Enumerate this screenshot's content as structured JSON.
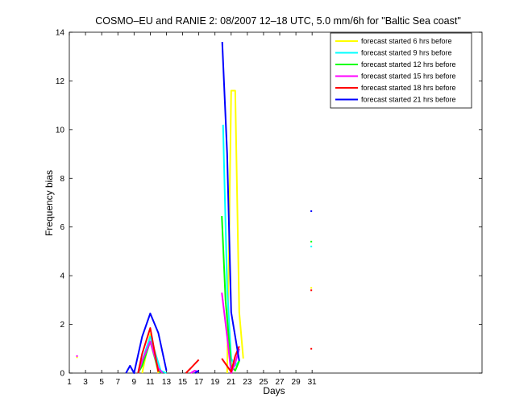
{
  "chart_data": {
    "type": "line",
    "title": "COSMO–EU and RANIE 2: 08/2007 12–18 UTC, 5.0 mm/6h for \"Baltic Sea coast\"",
    "xlabel": "Days",
    "ylabel": "Frequency bias",
    "xlim": [
      1,
      52
    ],
    "ylim": [
      0,
      14
    ],
    "xticks": [
      1,
      3,
      5,
      7,
      9,
      11,
      13,
      15,
      17,
      19,
      21,
      23,
      25,
      27,
      29,
      31
    ],
    "yticks": [
      0,
      2,
      4,
      6,
      8,
      10,
      12,
      14
    ],
    "grid": false,
    "legend_position": "top-right",
    "series": [
      {
        "name": "forecast started 6 hrs before",
        "color": "#ffff00",
        "segments": [
          [
            [
              1.95,
              0.65
            ]
          ],
          [
            [
              10,
              0.0
            ],
            [
              11,
              1.6
            ],
            [
              12,
              0.0
            ]
          ],
          [
            [
              20.5,
              0.0
            ],
            [
              21,
              11.6
            ],
            [
              21.5,
              11.6
            ],
            [
              22,
              2.5
            ],
            [
              22.5,
              0.6
            ]
          ],
          [
            [
              30.9,
              3.5
            ]
          ]
        ]
      },
      {
        "name": "forecast started 9 hrs before",
        "color": "#00ffff",
        "segments": [
          [
            [
              9.5,
              0.0
            ],
            [
              11,
              1.5
            ],
            [
              12.3,
              0.1
            ],
            [
              13,
              0.0
            ]
          ],
          [
            [
              20,
              10.2
            ],
            [
              20.5,
              3.5
            ],
            [
              21,
              0.6
            ],
            [
              21.5,
              0.3
            ],
            [
              22,
              0.5
            ]
          ],
          [
            [
              30.9,
              5.2
            ]
          ]
        ]
      },
      {
        "name": "forecast started 12 hrs before",
        "color": "#00ff00",
        "segments": [
          [
            [
              9.5,
              0.0
            ],
            [
              10,
              0.3
            ],
            [
              11,
              1.3
            ],
            [
              12,
              0.1
            ],
            [
              12.5,
              0.0
            ]
          ],
          [
            [
              19.85,
              6.45
            ],
            [
              20.3,
              3.0
            ],
            [
              21,
              0.3
            ],
            [
              21.5,
              0.1
            ],
            [
              22,
              0.5
            ]
          ],
          [
            [
              30.9,
              5.4
            ]
          ]
        ]
      },
      {
        "name": "forecast started 15 hrs before",
        "color": "#ff00ff",
        "segments": [
          [
            [
              1.95,
              0.7
            ]
          ],
          [
            [
              9.5,
              0.0
            ],
            [
              10,
              0.5
            ],
            [
              11,
              1.3
            ],
            [
              12,
              0.2
            ],
            [
              12.5,
              0.0
            ]
          ],
          [
            [
              16,
              0.0
            ],
            [
              16.5,
              0.1
            ],
            [
              17,
              0.05
            ]
          ],
          [
            [
              19.85,
              3.3
            ],
            [
              20.5,
              1.5
            ],
            [
              21,
              0.0
            ],
            [
              21.5,
              0.4
            ],
            [
              22,
              1.0
            ]
          ]
        ]
      },
      {
        "name": "forecast started 18 hrs before",
        "color": "#ff0000",
        "segments": [
          [
            [
              9.5,
              0.0
            ],
            [
              10,
              0.8
            ],
            [
              11,
              1.85
            ],
            [
              12,
              0.05
            ]
          ],
          [
            [
              15.4,
              0.0
            ],
            [
              16,
              0.2
            ],
            [
              17,
              0.55
            ]
          ],
          [
            [
              19.85,
              0.6
            ],
            [
              21,
              0.05
            ],
            [
              21.5,
              0.7
            ],
            [
              22,
              1.1
            ]
          ],
          [
            [
              30.9,
              1.0
            ]
          ],
          [
            [
              30.9,
              3.4
            ]
          ]
        ]
      },
      {
        "name": "forecast started 21 hrs before",
        "color": "#0000ff",
        "segments": [
          [
            [
              8,
              0.0
            ],
            [
              8.5,
              0.3
            ],
            [
              9,
              0.0
            ],
            [
              10,
              1.5
            ],
            [
              11,
              2.45
            ],
            [
              12,
              1.65
            ],
            [
              13,
              0.1
            ]
          ],
          [
            [
              16.5,
              0.0
            ],
            [
              17,
              0.1
            ]
          ],
          [
            [
              19.9,
              13.6
            ],
            [
              20.5,
              9.0
            ],
            [
              21,
              2.5
            ],
            [
              21.5,
              1.5
            ],
            [
              22,
              0.5
            ]
          ],
          [
            [
              30.9,
              6.65
            ]
          ]
        ]
      }
    ]
  }
}
